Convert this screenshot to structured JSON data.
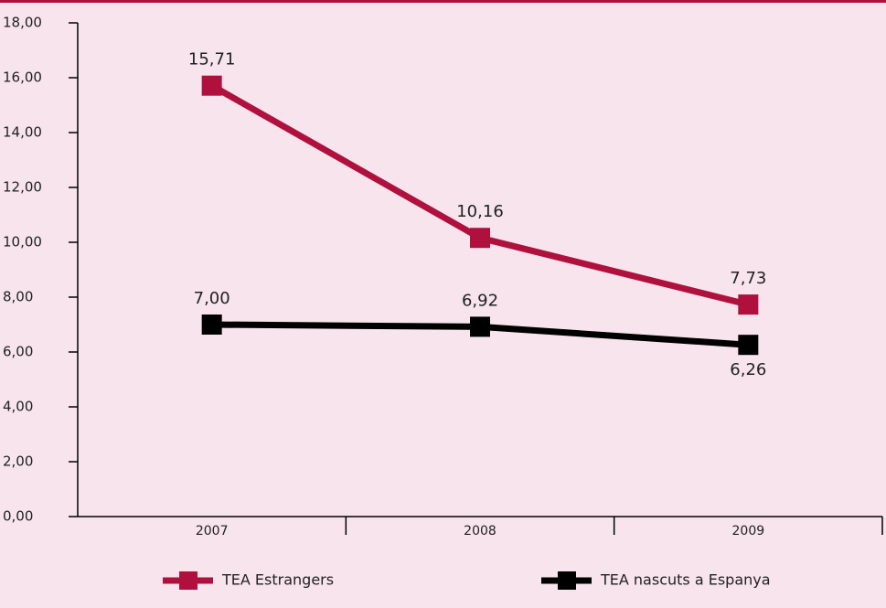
{
  "chart_data": {
    "type": "line",
    "categories": [
      "2007",
      "2008",
      "2009"
    ],
    "series": [
      {
        "name": "TEA Estrangers",
        "color": "#b0103e",
        "values": [
          15.71,
          10.16,
          7.73
        ],
        "value_labels": [
          "15,71",
          "10,16",
          "7,73"
        ]
      },
      {
        "name": "TEA nascuts a Espanya",
        "color": "#000000",
        "values": [
          7.0,
          6.92,
          6.26
        ],
        "value_labels": [
          "7,00",
          "6,92",
          "6,26"
        ]
      }
    ],
    "ylim": [
      0,
      18
    ],
    "yticks": [
      {
        "value": 0,
        "label": "0,00"
      },
      {
        "value": 2,
        "label": "2,00"
      },
      {
        "value": 4,
        "label": "4,00"
      },
      {
        "value": 6,
        "label": "6,00"
      },
      {
        "value": 8,
        "label": "8,00"
      },
      {
        "value": 10,
        "label": "10,00"
      },
      {
        "value": 12,
        "label": "12,00"
      },
      {
        "value": 14,
        "label": "14,00"
      },
      {
        "value": 16,
        "label": "16,00"
      },
      {
        "value": 18,
        "label": "18,00"
      }
    ],
    "grid": false
  }
}
